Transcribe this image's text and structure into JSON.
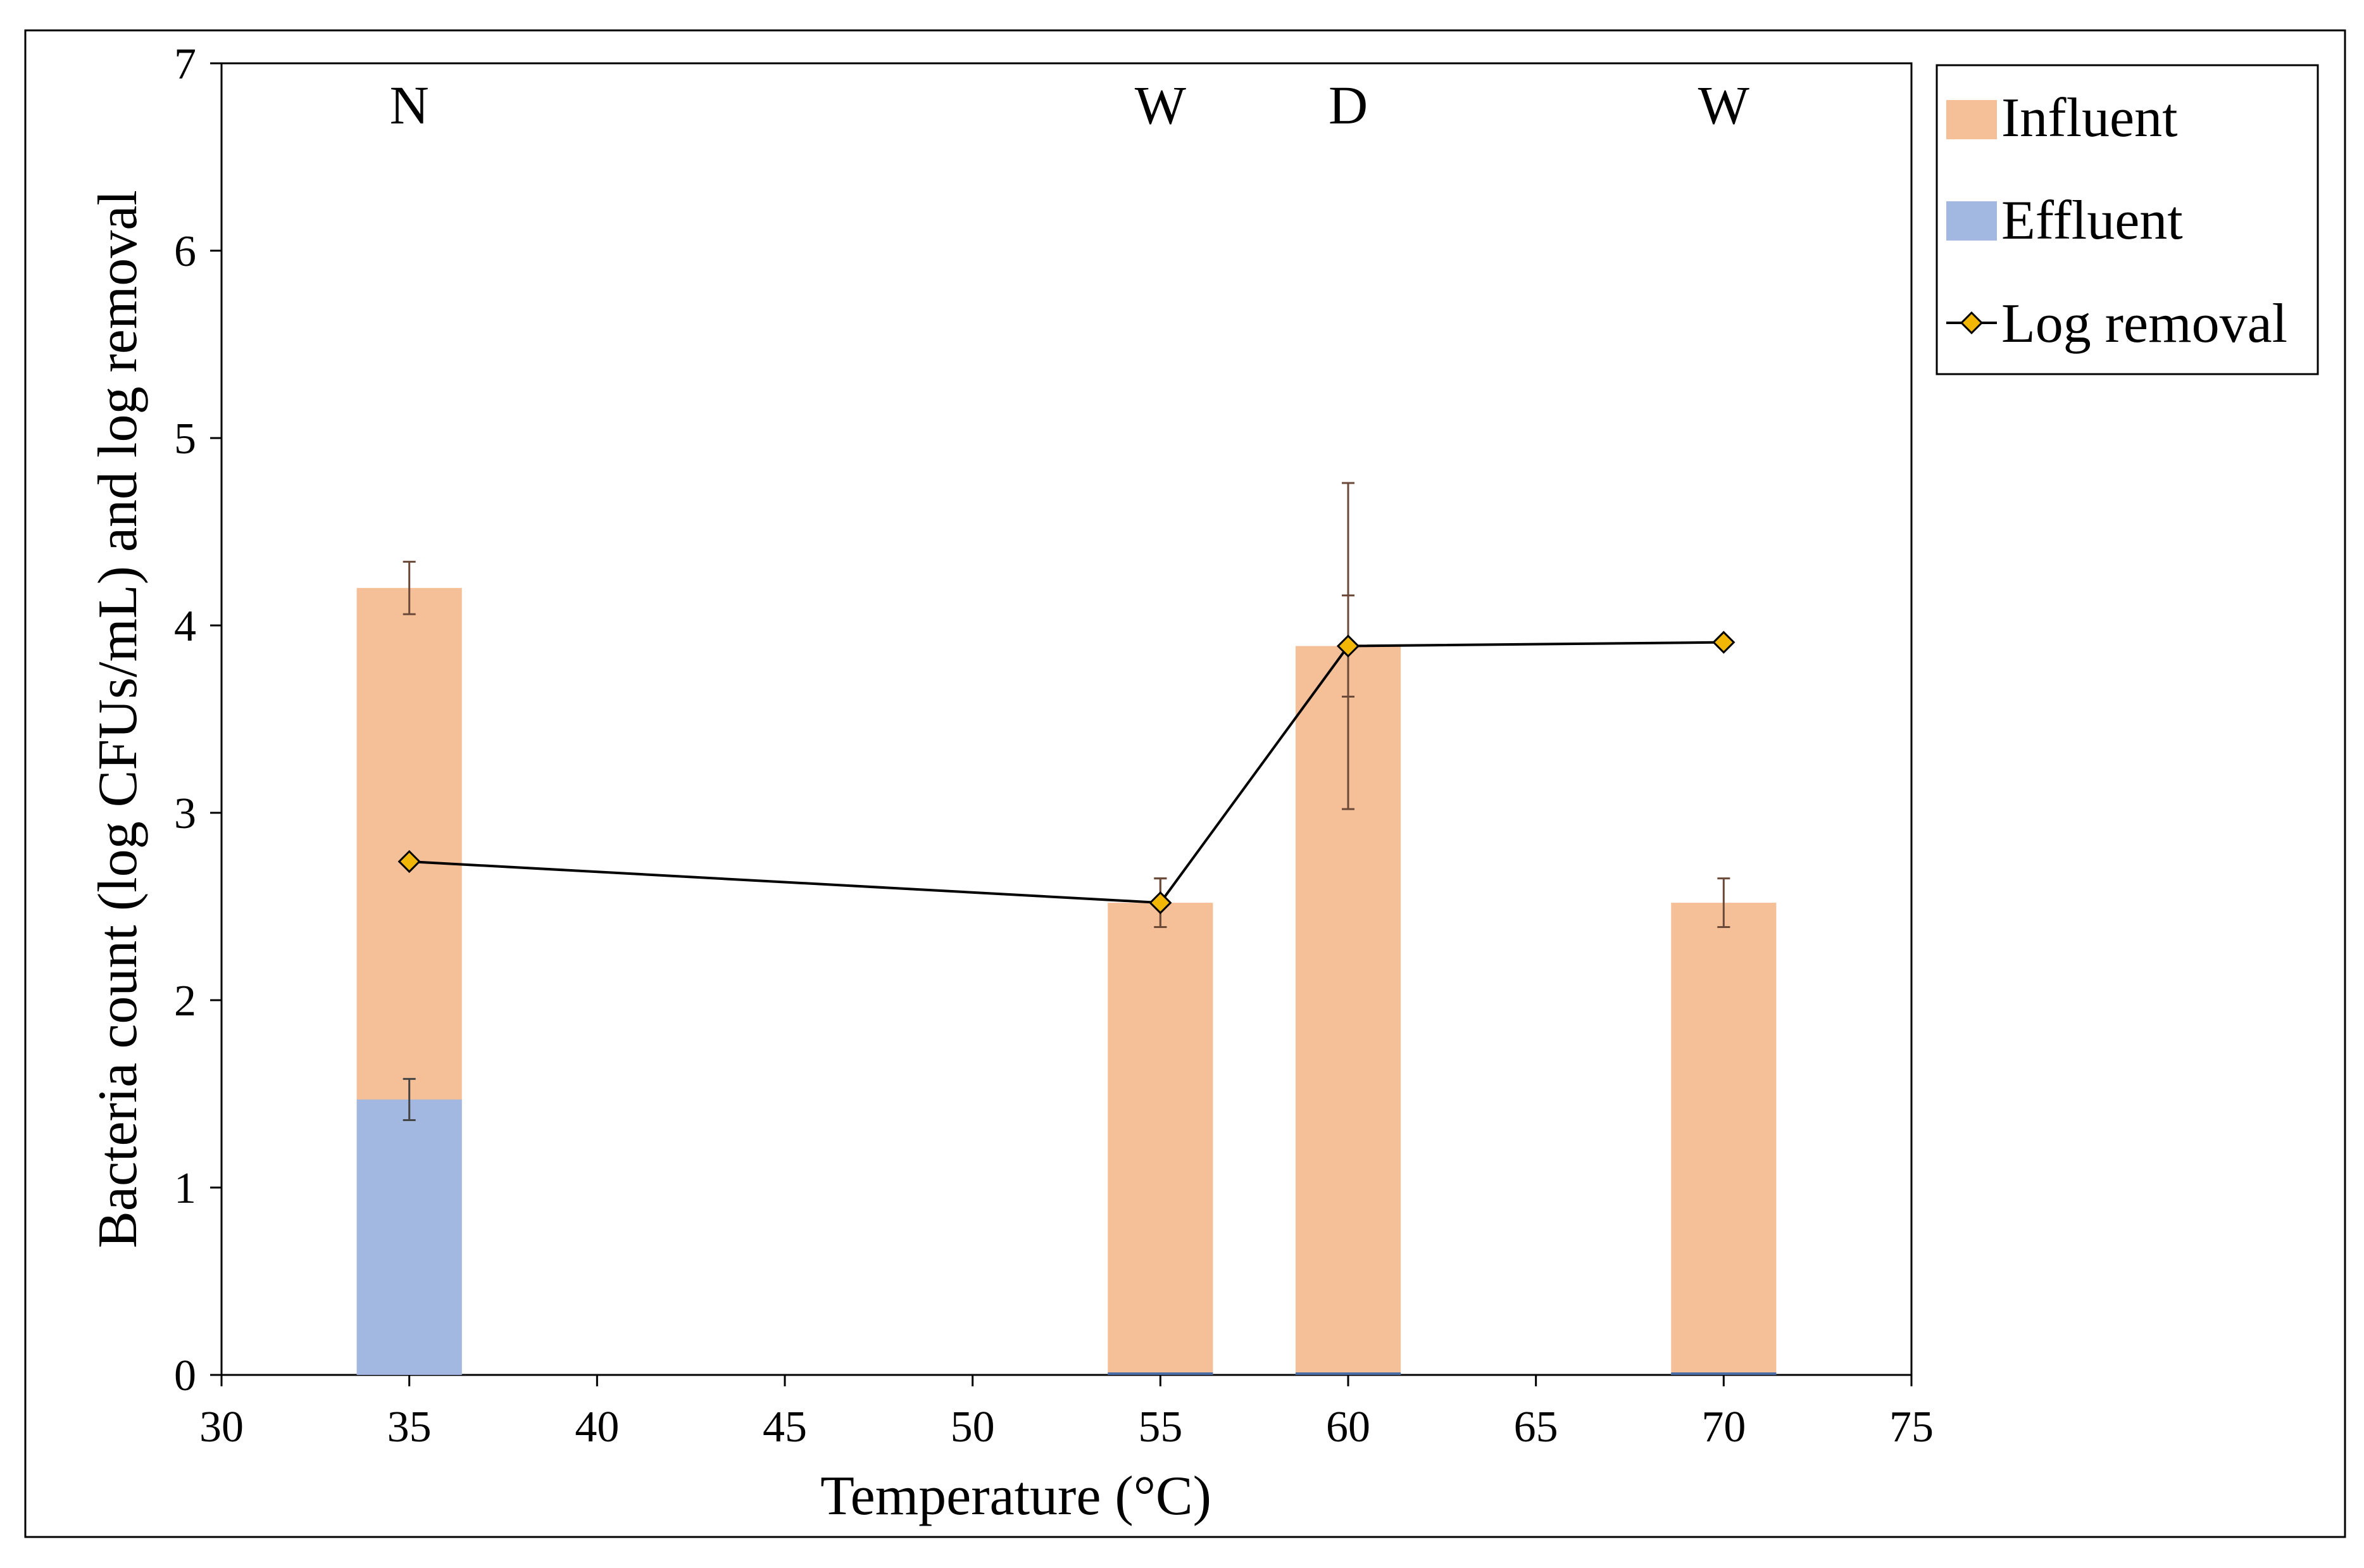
{
  "chart_data": {
    "type": "bar",
    "xlabel": "Temperature (°C)",
    "ylabel": "Bacteria count (log CFUs/mL) and log removal",
    "xlim": [
      30,
      75
    ],
    "ylim": [
      0,
      7
    ],
    "xticks": [
      "30",
      "35",
      "40",
      "45",
      "50",
      "55",
      "60",
      "65",
      "70",
      "75"
    ],
    "yticks": [
      "0",
      "1",
      "2",
      "3",
      "4",
      "5",
      "6",
      "7"
    ],
    "grid": false,
    "legend_position": "top-right",
    "categories": [
      "35",
      "55",
      "60",
      "70"
    ],
    "x": [
      35,
      55,
      60,
      70
    ],
    "annotations": [
      {
        "x": 35,
        "label": "N"
      },
      {
        "x": 55,
        "label": "W"
      },
      {
        "x": 60,
        "label": "D"
      },
      {
        "x": 70,
        "label": "W"
      }
    ],
    "series": [
      {
        "name": "Influent",
        "type": "bar",
        "color": "#f5bf98",
        "values": [
          4.2,
          2.52,
          3.89,
          2.52
        ],
        "error": [
          0.14,
          0.13,
          0.27,
          0.13
        ]
      },
      {
        "name": "Effluent",
        "type": "bar",
        "color": "#a3b8e0",
        "values": [
          1.47,
          0.01,
          0.01,
          0.01
        ],
        "error": [
          0.11,
          0,
          0,
          0
        ]
      },
      {
        "name": "Log removal",
        "type": "line",
        "color": "#000000",
        "marker_color": "#f2b705",
        "values": [
          2.74,
          2.52,
          3.89,
          3.91
        ],
        "error": [
          0,
          0.13,
          0.87,
          0
        ]
      }
    ]
  }
}
